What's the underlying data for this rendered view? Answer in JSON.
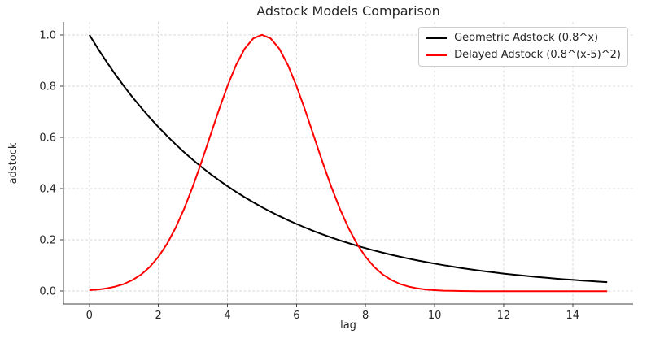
{
  "chart_data": {
    "type": "line",
    "title": "Adstock Models Comparison",
    "xlabel": "lag",
    "ylabel": "adstock",
    "xlim": [
      -0.75,
      15.75
    ],
    "ylim": [
      -0.05,
      1.05
    ],
    "xticks": [
      0,
      2,
      4,
      6,
      8,
      10,
      12,
      14
    ],
    "xtick_labels": [
      "0",
      "2",
      "4",
      "6",
      "8",
      "10",
      "12",
      "14"
    ],
    "yticks": [
      0.0,
      0.2,
      0.4,
      0.6,
      0.8,
      1.0
    ],
    "ytick_labels": [
      "0.0",
      "0.2",
      "0.4",
      "0.6",
      "0.8",
      "1.0"
    ],
    "grid": true,
    "grid_style": "dashed",
    "grid_color": "#d9d9d9",
    "axis_color": "#404040",
    "text_color": "#262626",
    "legend_position": "upper-right",
    "x": [
      0,
      0.25,
      0.5,
      0.75,
      1,
      1.25,
      1.5,
      1.75,
      2,
      2.25,
      2.5,
      2.75,
      3,
      3.25,
      3.5,
      3.75,
      4,
      4.25,
      4.5,
      4.75,
      5,
      5.25,
      5.5,
      5.75,
      6,
      6.25,
      6.5,
      6.75,
      7,
      7.25,
      7.5,
      7.75,
      8,
      8.25,
      8.5,
      8.75,
      9,
      9.25,
      9.5,
      9.75,
      10,
      10.25,
      10.5,
      10.75,
      11,
      11.25,
      11.5,
      11.75,
      12,
      12.25,
      12.5,
      12.75,
      13,
      13.25,
      13.5,
      13.75,
      14,
      14.25,
      14.5,
      14.75,
      15
    ],
    "series": [
      {
        "name": "Geometric Adstock (0.8^x)",
        "slug": "geometric-adstock",
        "color": "#000000",
        "values": [
          1.0,
          0.9457,
          0.8944,
          0.8459,
          0.8,
          0.7566,
          0.7155,
          0.6767,
          0.64,
          0.6053,
          0.5724,
          0.5413,
          0.512,
          0.4842,
          0.4579,
          0.4331,
          0.4096,
          0.3874,
          0.3664,
          0.3465,
          0.3277,
          0.3099,
          0.2931,
          0.2772,
          0.2621,
          0.2479,
          0.2345,
          0.2217,
          0.2097,
          0.1983,
          0.1876,
          0.1774,
          0.1678,
          0.1587,
          0.1501,
          0.1419,
          0.1342,
          0.1269,
          0.12,
          0.1135,
          0.1074,
          0.1016,
          0.0961,
          0.0908,
          0.0859,
          0.0812,
          0.0768,
          0.0727,
          0.0687,
          0.065,
          0.0615,
          0.0581,
          0.055,
          0.052,
          0.0492,
          0.0465,
          0.044,
          0.0416,
          0.0393,
          0.0372,
          0.0352
        ]
      },
      {
        "name": "Delayed Adstock (0.8^(x-5)^2)",
        "slug": "delayed-adstock",
        "color": "#ff0000",
        "values": [
          0.0038,
          0.0065,
          0.0109,
          0.0178,
          0.0281,
          0.0434,
          0.065,
          0.0947,
          0.1342,
          0.185,
          0.2479,
          0.3232,
          0.4096,
          0.5049,
          0.6052,
          0.7056,
          0.8,
          0.882,
          0.9457,
          0.9861,
          1.0,
          0.9861,
          0.9457,
          0.882,
          0.8,
          0.7056,
          0.6052,
          0.5049,
          0.4096,
          0.3232,
          0.2479,
          0.185,
          0.1342,
          0.0947,
          0.065,
          0.0434,
          0.0281,
          0.0178,
          0.0109,
          0.0065,
          0.0038,
          0.0021,
          0.0012,
          0.0006,
          0.0003,
          0.0002,
          0.0001,
          0,
          0,
          0,
          0,
          0,
          0,
          0,
          0,
          0,
          0,
          0,
          0,
          0,
          0
        ]
      }
    ]
  }
}
